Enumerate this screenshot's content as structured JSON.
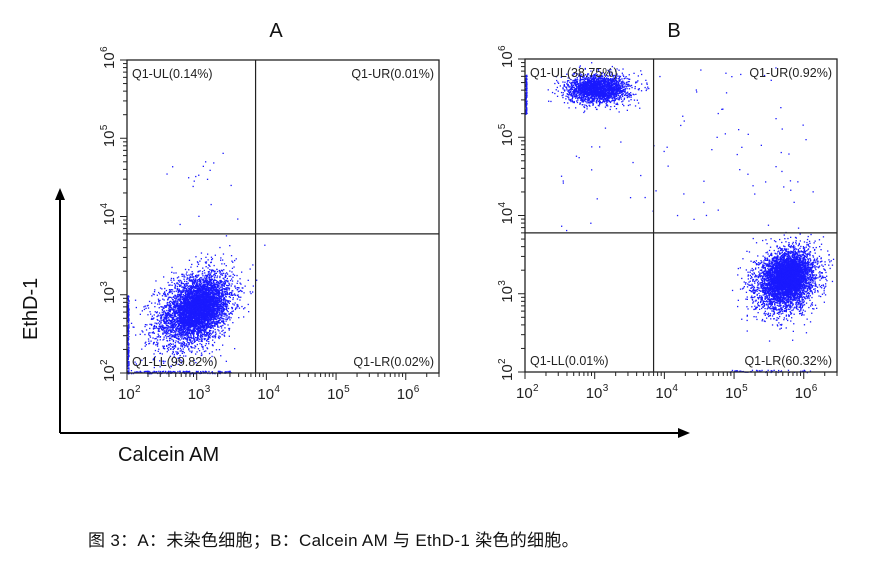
{
  "chart_data": [
    {
      "type": "scatter",
      "title": "A",
      "xlabel": "Calcein AM",
      "ylabel": "EthD-1",
      "xscale": "log",
      "yscale": "log",
      "xlim": [
        100,
        3000000
      ],
      "ylim": [
        100,
        1000000
      ],
      "xticks": [
        "10^2",
        "10^3",
        "10^4",
        "10^5",
        "10^6"
      ],
      "yticks": [
        "10^2",
        "10^3",
        "10^4",
        "10^5",
        "10^6"
      ],
      "quadrant_gate": {
        "x": 7000,
        "y": 6000
      },
      "quadrants": [
        {
          "name": "Q1-UL",
          "percent": 0.14,
          "label": "Q1-UL(0.14%)"
        },
        {
          "name": "Q1-UR",
          "percent": 0.01,
          "label": "Q1-UR(0.01%)"
        },
        {
          "name": "Q1-LL",
          "percent": 99.82,
          "label": "Q1-LL(99.82%)"
        },
        {
          "name": "Q1-LR",
          "percent": 0.02,
          "label": "Q1-LR(0.02%)"
        }
      ],
      "population_center": {
        "x": 1000,
        "y": 700
      },
      "color": "#1a1aff"
    },
    {
      "type": "scatter",
      "title": "B",
      "xlabel": "Calcein AM",
      "ylabel": "EthD-1",
      "xscale": "log",
      "yscale": "log",
      "xlim": [
        100,
        3000000
      ],
      "ylim": [
        100,
        1000000
      ],
      "xticks": [
        "10^2",
        "10^3",
        "10^4",
        "10^5",
        "10^6"
      ],
      "yticks": [
        "10^2",
        "10^3",
        "10^4",
        "10^5",
        "10^6"
      ],
      "quadrant_gate": {
        "x": 7000,
        "y": 6000
      },
      "quadrants": [
        {
          "name": "Q1-UL",
          "percent": 38.75,
          "label": "Q1-UL(38.75%)"
        },
        {
          "name": "Q1-UR",
          "percent": 0.92,
          "label": "Q1-UR(0.92%)"
        },
        {
          "name": "Q1-LL",
          "percent": 0.01,
          "label": "Q1-LL(0.01%)"
        },
        {
          "name": "Q1-LR",
          "percent": 60.32,
          "label": "Q1-LR(60.32%)"
        }
      ],
      "populations": [
        {
          "quadrant": "Q1-UL",
          "center": {
            "x": 1200,
            "y": 400000
          }
        },
        {
          "quadrant": "Q1-LR",
          "center": {
            "x": 500000,
            "y": 1500
          }
        }
      ],
      "color": "#1a1aff"
    }
  ],
  "figure": {
    "panel_a_title": "A",
    "panel_b_title": "B",
    "x_axis_label": "Calcein AM",
    "y_axis_label": "EthD-1",
    "tick_base": "10",
    "tick_exponents": [
      "2",
      "3",
      "4",
      "5",
      "6"
    ],
    "caption": "图 3：A：未染色细胞；B：Calcein AM  与 EthD-1 染色的细胞。"
  }
}
